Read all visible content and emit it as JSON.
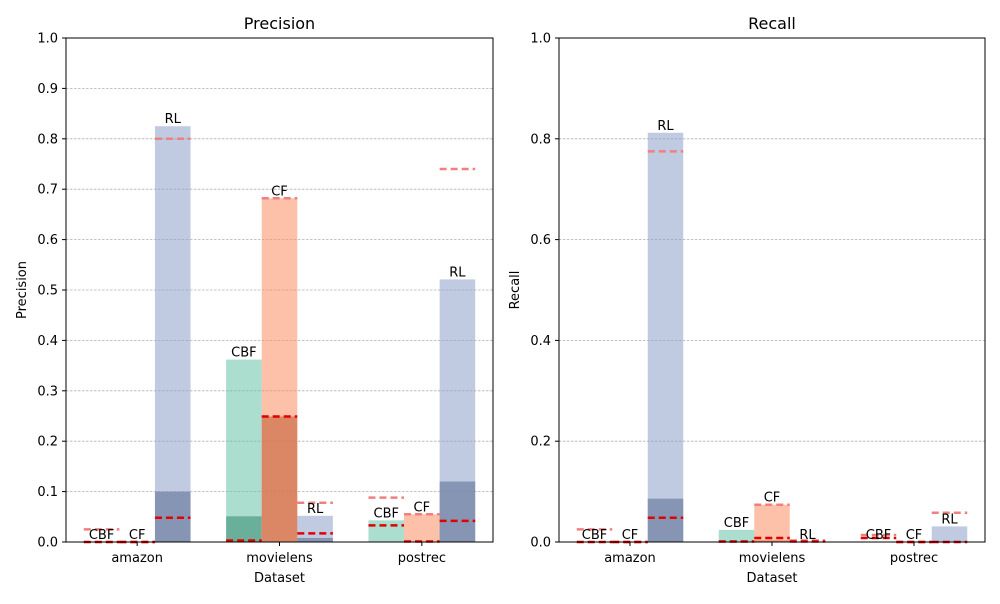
{
  "chart_data": [
    {
      "type": "bar",
      "title": "Precision",
      "xlabel": "Dataset",
      "ylabel": "Precision",
      "categories": [
        "amazon",
        "movielens",
        "postrec"
      ],
      "ylim": [
        0,
        1.0
      ],
      "yticks": [
        "0.0",
        "0.1",
        "0.2",
        "0.3",
        "0.4",
        "0.5",
        "0.6",
        "0.7",
        "0.8",
        "0.9",
        "1.0"
      ],
      "grid": true,
      "series": [
        {
          "name": "CBF",
          "color": "#66c2a5",
          "values": [
            0.0,
            0.362,
            0.043
          ],
          "inner_values": [
            0.0,
            0.051,
            0.0
          ],
          "marker_upper": [
            0.025,
            0.003,
            0.088
          ],
          "marker_lower": [
            0.0,
            0.003,
            0.033
          ]
        },
        {
          "name": "CF",
          "color": "#fc8d62",
          "values": [
            0.0,
            0.682,
            0.055
          ],
          "inner_values": [
            0.0,
            0.249,
            0.0
          ],
          "marker_upper": [
            0.0,
            0.682,
            0.055
          ],
          "marker_lower": [
            0.0,
            0.249,
            0.001
          ]
        },
        {
          "name": "RL",
          "color": "#8da0cb",
          "values": [
            0.825,
            0.052,
            0.521
          ],
          "inner_values": [
            0.1,
            0.008,
            0.12
          ],
          "marker_upper": [
            0.8,
            0.078,
            0.74
          ],
          "marker_lower": [
            0.048,
            0.017,
            0.042
          ]
        }
      ]
    },
    {
      "type": "bar",
      "title": "Recall",
      "xlabel": "Dataset",
      "ylabel": "Recall",
      "categories": [
        "amazon",
        "movielens",
        "postrec"
      ],
      "ylim": [
        0,
        1.0
      ],
      "yticks": [
        "0.0",
        "0.2",
        "0.4",
        "0.6",
        "0.8",
        "1.0"
      ],
      "grid": true,
      "series": [
        {
          "name": "CBF",
          "color": "#66c2a5",
          "values": [
            0.0,
            0.024,
            0.0
          ],
          "inner_values": [
            0.0,
            0.0,
            0.0
          ],
          "marker_upper": [
            0.025,
            0.001,
            0.014
          ],
          "marker_lower": [
            0.0,
            0.001,
            0.008
          ]
        },
        {
          "name": "CF",
          "color": "#fc8d62",
          "values": [
            0.0,
            0.074,
            0.0
          ],
          "inner_values": [
            0.0,
            0.003,
            0.0
          ],
          "marker_upper": [
            0.0,
            0.074,
            0.0
          ],
          "marker_lower": [
            0.0,
            0.008,
            0.0
          ]
        },
        {
          "name": "RL",
          "color": "#8da0cb",
          "values": [
            0.812,
            0.0,
            0.031
          ],
          "inner_values": [
            0.086,
            0.0,
            0.0
          ],
          "marker_upper": [
            0.775,
            0.003,
            0.058
          ],
          "marker_lower": [
            0.048,
            0.001,
            0.0
          ]
        }
      ]
    }
  ]
}
